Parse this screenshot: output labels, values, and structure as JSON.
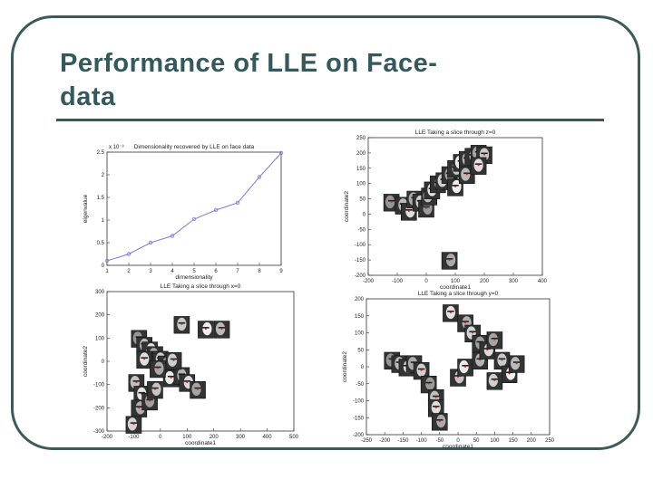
{
  "slide": {
    "title_line1": "Performance of LLE on Face-",
    "title_line2": "data"
  },
  "colors": {
    "frame": "#3d5a5a",
    "title": "#34585b",
    "series": "#7a80d8"
  },
  "chart_data": [
    {
      "type": "line",
      "title": "Dimensionality recovered by LLE on face data",
      "xlabel": "dimensionality",
      "ylabel": "eigenvalue",
      "exponent_label": "x 10⁻³",
      "x": [
        1,
        2,
        3,
        4,
        5,
        6,
        7,
        8,
        9
      ],
      "y": [
        0.1,
        0.25,
        0.5,
        0.65,
        1.02,
        1.22,
        1.38,
        1.95,
        2.48
      ],
      "xlim": [
        1,
        9
      ],
      "ylim": [
        0,
        2.5
      ],
      "xticks": [
        "1",
        "2",
        "3",
        "4",
        "5",
        "6",
        "7",
        "8",
        "9"
      ],
      "yticks": [
        "0",
        "0.5",
        "1",
        "1.5",
        "2",
        "2.5"
      ],
      "grid": false
    },
    {
      "type": "scatter",
      "title": "LLE Taking a slice through z=0",
      "xlabel": "coordinate1",
      "ylabel": "coordinate2",
      "xlim": [
        -200,
        400
      ],
      "ylim": [
        -200,
        250
      ],
      "xticks": [
        "-200",
        "-100",
        "0",
        "100",
        "200",
        "300",
        "400"
      ],
      "yticks": [
        "-200",
        "-150",
        "-100",
        "-50",
        "0",
        "50",
        "100",
        "150",
        "200",
        "250"
      ],
      "points": [
        [
          -120,
          40
        ],
        [
          -80,
          30
        ],
        [
          -60,
          10
        ],
        [
          -40,
          50
        ],
        [
          -20,
          40
        ],
        [
          0,
          20
        ],
        [
          10,
          60
        ],
        [
          20,
          80
        ],
        [
          40,
          100
        ],
        [
          60,
          110
        ],
        [
          80,
          130
        ],
        [
          100,
          150
        ],
        [
          120,
          170
        ],
        [
          140,
          180
        ],
        [
          160,
          190
        ],
        [
          180,
          200
        ],
        [
          200,
          195
        ],
        [
          100,
          90
        ],
        [
          140,
          130
        ],
        [
          180,
          160
        ],
        [
          80,
          -150
        ]
      ]
    },
    {
      "type": "scatter",
      "title": "LLE Taking a slice through x=0",
      "xlabel": "coordinate1",
      "ylabel": "coordinate2",
      "xlim": [
        -200,
        500
      ],
      "ylim": [
        -300,
        300
      ],
      "xticks": [
        "-200",
        "-100",
        "0",
        "100",
        "200",
        "300",
        "400",
        "500"
      ],
      "yticks": [
        "-300",
        "-200",
        "-100",
        "0",
        "100",
        "200",
        "300"
      ],
      "points": [
        [
          -80,
          100
        ],
        [
          -60,
          70
        ],
        [
          -40,
          50
        ],
        [
          -20,
          30
        ],
        [
          0,
          10
        ],
        [
          20,
          -10
        ],
        [
          -90,
          -90
        ],
        [
          -70,
          -140
        ],
        [
          -80,
          -200
        ],
        [
          -100,
          -270
        ],
        [
          -40,
          -170
        ],
        [
          -20,
          -120
        ],
        [
          40,
          -70
        ],
        [
          80,
          -60
        ],
        [
          100,
          -90
        ],
        [
          140,
          -120
        ],
        [
          80,
          160
        ],
        [
          170,
          140
        ],
        [
          230,
          140
        ],
        [
          -60,
          10
        ],
        [
          -10,
          -30
        ],
        [
          50,
          5
        ]
      ]
    },
    {
      "type": "scatter",
      "title": "LLE Taking a slice through y=0",
      "xlabel": "coordinate1",
      "ylabel": "coordinate2",
      "xlim": [
        -250,
        250
      ],
      "ylim": [
        -200,
        200
      ],
      "xticks": [
        "-250",
        "-200",
        "-150",
        "-100",
        "-50",
        "0",
        "50",
        "100",
        "150",
        "200",
        "250"
      ],
      "yticks": [
        "-200",
        "-150",
        "-100",
        "-50",
        "0",
        "50",
        "100",
        "150",
        "200"
      ],
      "points": [
        [
          -180,
          20
        ],
        [
          -160,
          10
        ],
        [
          -140,
          0
        ],
        [
          -120,
          10
        ],
        [
          -100,
          -10
        ],
        [
          -80,
          -50
        ],
        [
          -60,
          -90
        ],
        [
          -20,
          160
        ],
        [
          20,
          130
        ],
        [
          40,
          100
        ],
        [
          60,
          70
        ],
        [
          0,
          -30
        ],
        [
          20,
          0
        ],
        [
          60,
          20
        ],
        [
          80,
          50
        ],
        [
          100,
          80
        ],
        [
          120,
          20
        ],
        [
          140,
          -20
        ],
        [
          160,
          10
        ],
        [
          -60,
          -120
        ],
        [
          -50,
          -160
        ],
        [
          100,
          -40
        ]
      ]
    }
  ]
}
